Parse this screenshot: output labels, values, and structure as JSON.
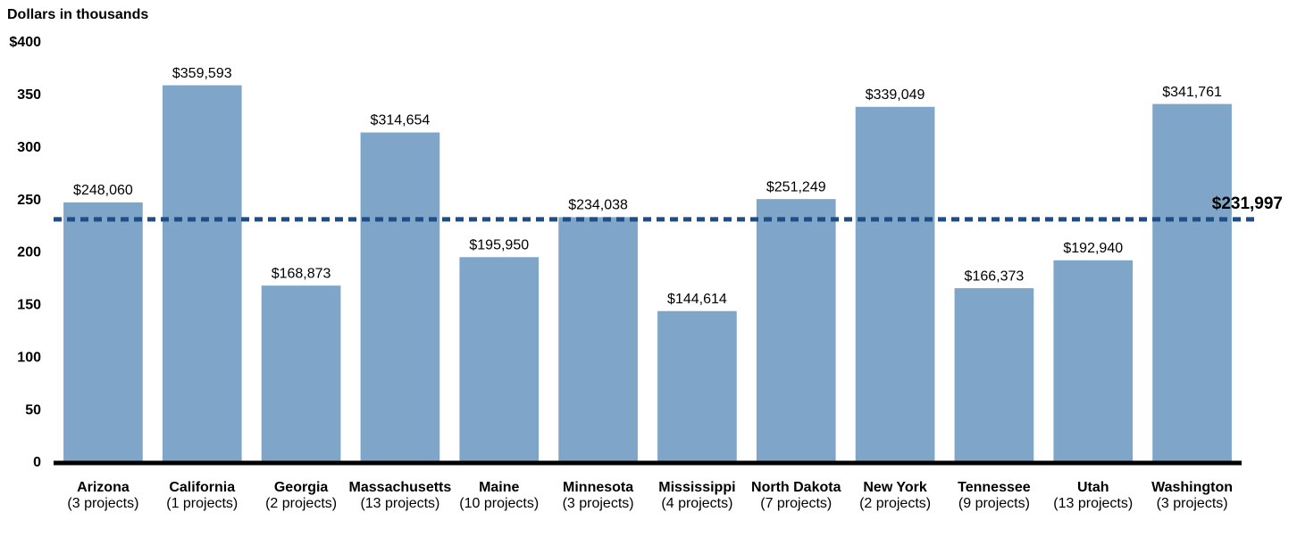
{
  "chart_data": {
    "type": "bar",
    "y_axis_label": "Dollars in thousands",
    "categories": [
      "Arizona",
      "California",
      "Georgia",
      "Massachusetts",
      "Maine",
      "Minnesota",
      "Mississippi",
      "North Dakota",
      "New York",
      "Tennessee",
      "Utah",
      "Washington"
    ],
    "category_notes": [
      "(3 projects)",
      "(1 projects)",
      "(2 projects)",
      "(13 projects)",
      "(10 projects)",
      "(3 projects)",
      "(4 projects)",
      "(7 projects)",
      "(2 projects)",
      "(9 projects)",
      "(13 projects)",
      "(3 projects)"
    ],
    "values": [
      248.06,
      359.593,
      168.873,
      314.654,
      195.95,
      234.038,
      144.614,
      251.249,
      339.049,
      166.373,
      192.94,
      341.761
    ],
    "value_labels": [
      "$248,060",
      "$359,593",
      "$168,873",
      "$314,654",
      "$195,950",
      "$234,038",
      "$144,614",
      "$251,249",
      "$339,049",
      "$166,373",
      "$192,940",
      "$341,761"
    ],
    "color": "#7fa6c8",
    "average": {
      "value": 231.997,
      "label": "$231,997",
      "color": "#1f4e87"
    },
    "ylim": [
      0,
      400
    ],
    "yticks": [
      0,
      50,
      100,
      150,
      200,
      250,
      300,
      350,
      {
        "value": 400,
        "label": "$400"
      }
    ],
    "grid": false
  }
}
